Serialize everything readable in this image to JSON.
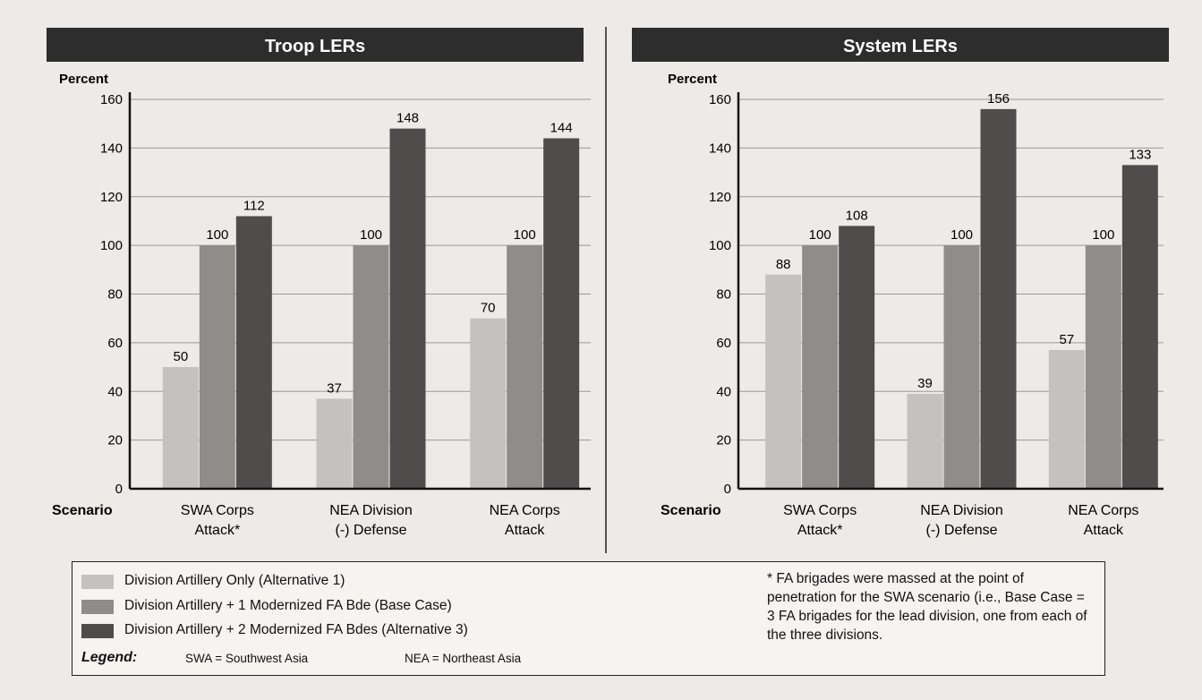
{
  "colors": {
    "alt1": "#c4c2bf",
    "base": "#8f8d8a",
    "alt3": "#4e4d4b",
    "header_bg": "#2d2d2d",
    "header_text": "#ffffff"
  },
  "chart_data": [
    {
      "type": "bar",
      "title": "Troop LERs",
      "ylabel": "Percent",
      "xlabel": "Scenario",
      "ylim": [
        0,
        160
      ],
      "yticks": [
        "0",
        "20",
        "40",
        "60",
        "80",
        "100",
        "120",
        "140",
        "160"
      ],
      "grid": true,
      "categories": [
        "SWA Corps Attack*",
        "NEA Division (-) Defense",
        "NEA Corps Attack"
      ],
      "category_lines": [
        [
          "SWA Corps",
          "Attack*"
        ],
        [
          "NEA Division",
          "(-) Defense"
        ],
        [
          "NEA Corps",
          "Attack"
        ]
      ],
      "series": [
        {
          "name": "Division Artillery Only (Alternative 1)",
          "values": [
            50,
            37,
            70
          ]
        },
        {
          "name": "Division Artillery + 1 Modernized FA Bde (Base Case)",
          "values": [
            100,
            100,
            100
          ]
        },
        {
          "name": "Division Artillery + 2 Modernized FA Bdes (Alternative 3)",
          "values": [
            112,
            148,
            144
          ]
        }
      ]
    },
    {
      "type": "bar",
      "title": "System LERs",
      "ylabel": "Percent",
      "xlabel": "Scenario",
      "ylim": [
        0,
        160
      ],
      "yticks": [
        "0",
        "20",
        "40",
        "60",
        "80",
        "100",
        "120",
        "140",
        "160"
      ],
      "grid": true,
      "categories": [
        "SWA Corps Attack*",
        "NEA Division (-) Defense",
        "NEA Corps Attack"
      ],
      "category_lines": [
        [
          "SWA Corps",
          "Attack*"
        ],
        [
          "NEA Division",
          "(-) Defense"
        ],
        [
          "NEA Corps",
          "Attack"
        ]
      ],
      "series": [
        {
          "name": "Division Artillery Only (Alternative 1)",
          "values": [
            88,
            39,
            57
          ]
        },
        {
          "name": "Division Artillery + 1 Modernized FA Bde (Base Case)",
          "values": [
            100,
            100,
            100
          ]
        },
        {
          "name": "Division Artillery + 2 Modernized FA Bdes (Alternative 3)",
          "values": [
            108,
            156,
            133
          ]
        }
      ]
    }
  ],
  "legend": {
    "items": [
      "Division Artillery Only (Alternative 1)",
      "Division Artillery + 1 Modernized FA Bde (Base Case)",
      "Division Artillery + 2 Modernized FA Bdes (Alternative 3)"
    ],
    "title": "Legend:",
    "abbr1": "SWA = Southwest Asia",
    "abbr2": "NEA = Northeast Asia",
    "footnote": "* FA brigades were massed at the point of penetration for the SWA scenario (i.e., Base Case = 3 FA brigades for the lead division, one from each of the three divisions."
  }
}
